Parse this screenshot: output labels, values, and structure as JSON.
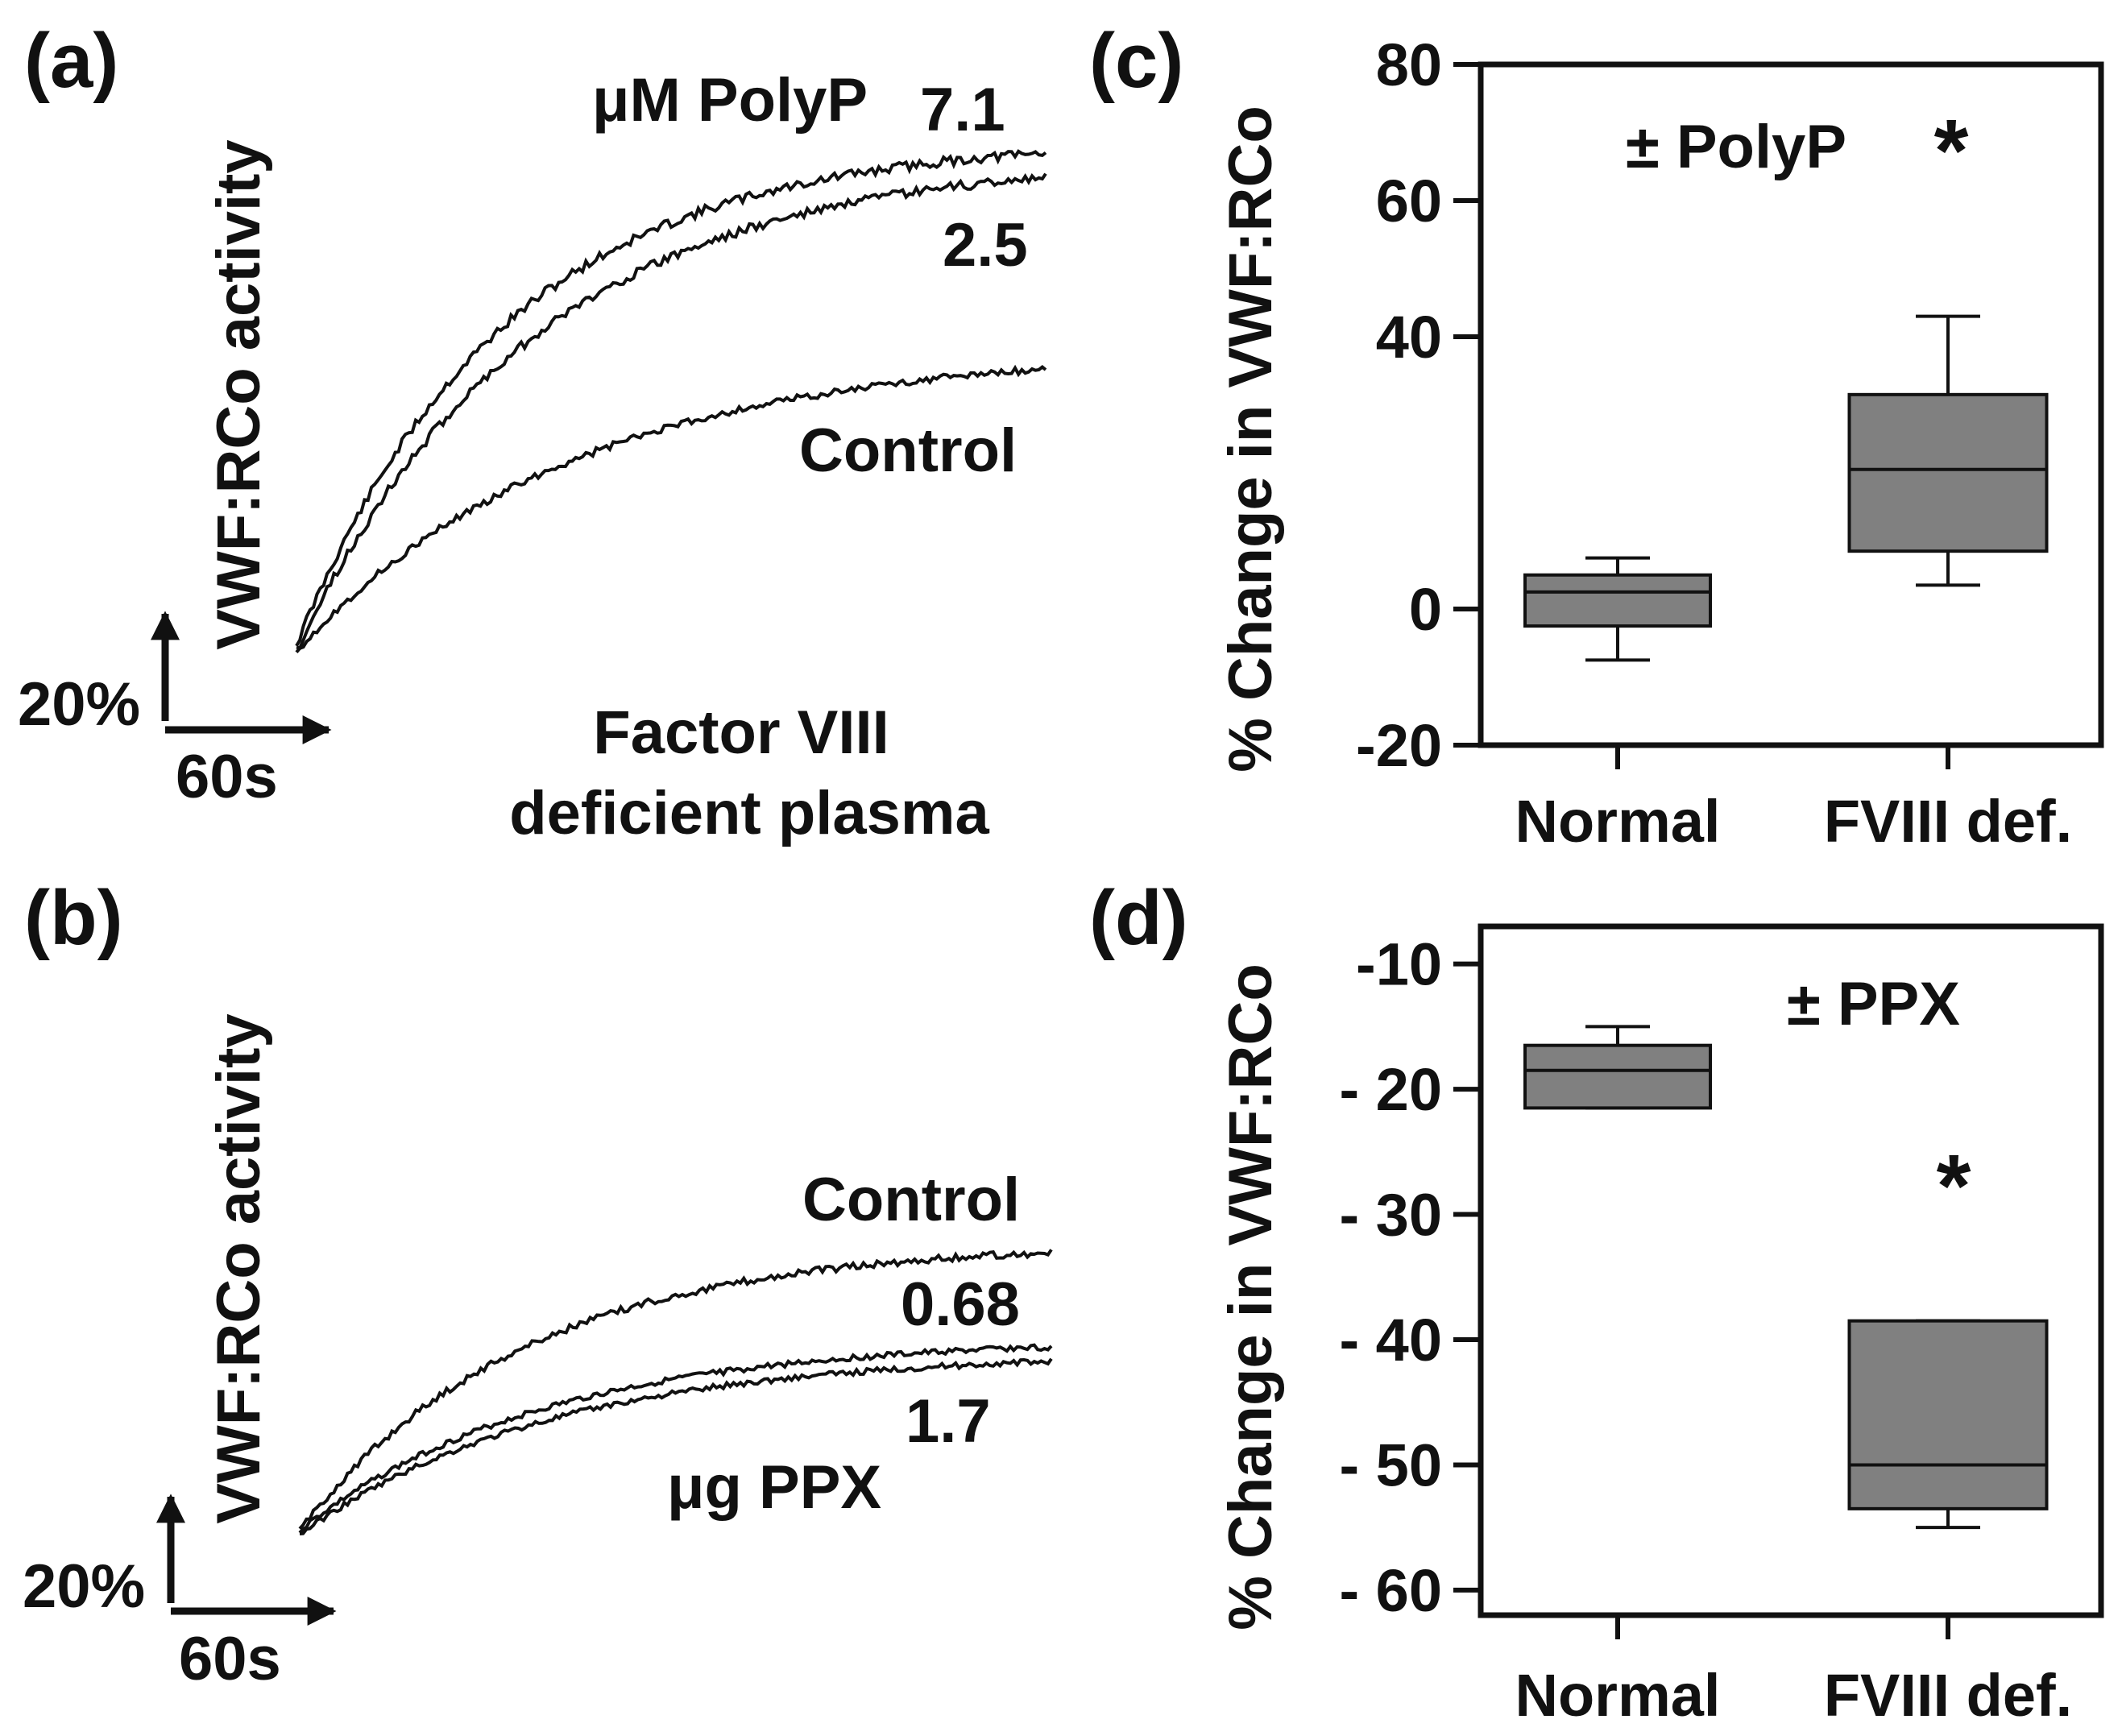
{
  "colors": {
    "ink": "#111111",
    "box_fill": "#808080",
    "background": "#ffffff"
  },
  "panel_a": {
    "label": "(a)",
    "ylabel": "VWF:RCo activity",
    "scale_y": "20%",
    "scale_x": "60s",
    "concentration_header": "μM PolyP",
    "curve_labels": [
      "7.1",
      "2.5",
      "Control"
    ],
    "caption_line1": "Factor VIII",
    "caption_line2": "deficient plasma"
  },
  "panel_b": {
    "label": "(b)",
    "ylabel": "VWF:RCo activity",
    "scale_y": "20%",
    "scale_x": "60s",
    "curve_labels": [
      "Control",
      "0.68",
      "1.7"
    ],
    "unit_label": "μg PPX"
  },
  "chart_data": [
    {
      "panel": "(c)",
      "type": "box",
      "title": "",
      "annotation": "± PolyP",
      "significance": "*",
      "ylabel": "% Change in VWF:RCo",
      "ylim": [
        -20,
        80
      ],
      "yticks": [
        80,
        60,
        40,
        0,
        -20
      ],
      "ytick_labels": [
        "80",
        "60",
        "40",
        "0",
        "-20"
      ],
      "categories": [
        "Normal",
        "FVIII def."
      ],
      "boxes": [
        {
          "name": "Normal",
          "min": -7.5,
          "q1": -2.5,
          "median": 2.5,
          "q3": 5,
          "max": 7.5
        },
        {
          "name": "FVIII def.",
          "min": 3.5,
          "q1": 8.5,
          "median": 20.5,
          "q3": 31.5,
          "max": 43
        }
      ]
    },
    {
      "panel": "(d)",
      "type": "box",
      "title": "",
      "annotation": "± PPX",
      "significance": "*",
      "ylabel": "% Change in VWF:RCo",
      "ylim": [
        -62,
        -7
      ],
      "yticks": [
        -10,
        -20,
        -30,
        -40,
        -50,
        -60
      ],
      "ytick_labels": [
        "-10",
        "- 20",
        "- 30",
        "- 40",
        "- 50",
        "- 60"
      ],
      "categories": [
        "Normal",
        "FVIII def."
      ],
      "boxes": [
        {
          "name": "Normal",
          "min": -21.5,
          "q1": -21.5,
          "median": -18.5,
          "q3": -16.5,
          "max": -15
        },
        {
          "name": "FVIII def.",
          "min": -55,
          "q1": -53.5,
          "median": -50,
          "q3": -38.5,
          "max": -38.5
        }
      ]
    }
  ]
}
